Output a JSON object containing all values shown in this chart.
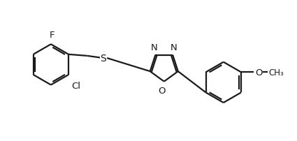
{
  "background_color": "#ffffff",
  "line_color": "#1a1a1a",
  "line_width": 1.6,
  "font_size": 9.5,
  "fig_width": 4.25,
  "fig_height": 2.03,
  "xlim": [
    0,
    10.5
  ],
  "ylim": [
    0,
    5.0
  ]
}
